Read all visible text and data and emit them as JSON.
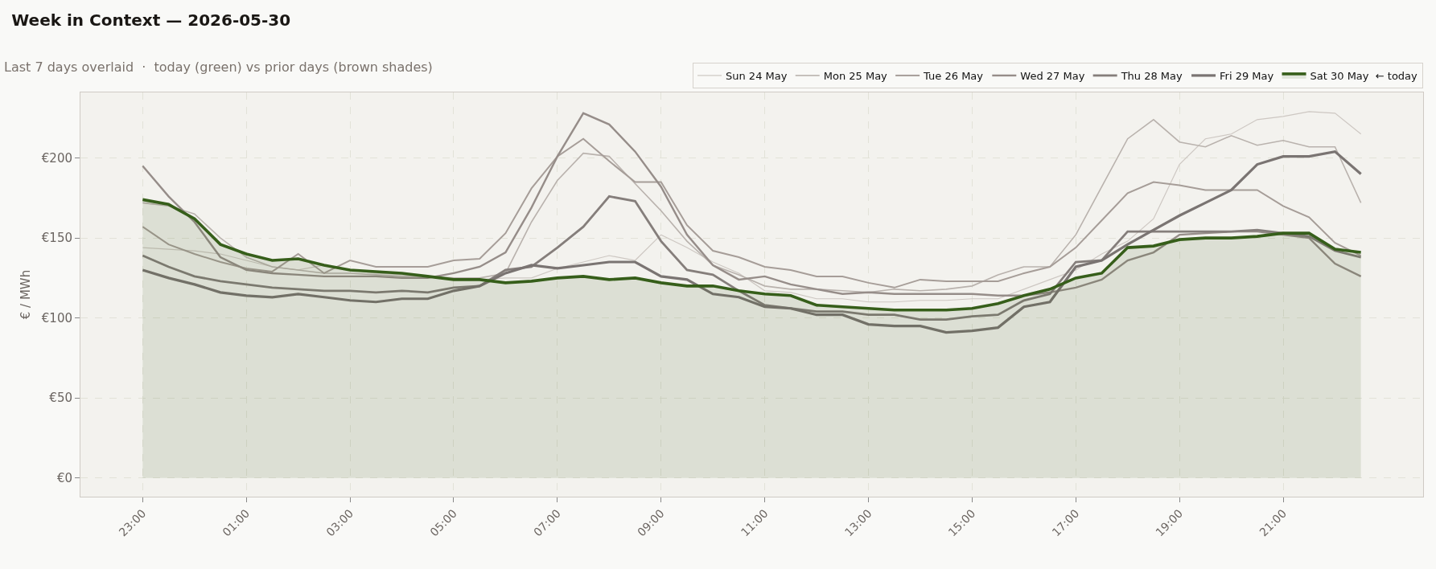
{
  "chart_data": {
    "type": "line",
    "title": "Week in Context — 2026-05-30",
    "subtitle": "Last 7 days overlaid  ·  today (green) vs prior days (brown shades)",
    "ylabel": "€ / MWh",
    "x": [
      "2026-05-29T23:00",
      "2026-05-29T23:30",
      "2026-05-30T00:00",
      "2026-05-30T00:30",
      "2026-05-30T01:00",
      "2026-05-30T01:30",
      "2026-05-30T02:00",
      "2026-05-30T02:30",
      "2026-05-30T03:00",
      "2026-05-30T03:30",
      "2026-05-30T04:00",
      "2026-05-30T04:30",
      "2026-05-30T05:00",
      "2026-05-30T05:30",
      "2026-05-30T06:00",
      "2026-05-30T06:30",
      "2026-05-30T07:00",
      "2026-05-30T07:30",
      "2026-05-30T08:00",
      "2026-05-30T08:30",
      "2026-05-30T09:00",
      "2026-05-30T09:30",
      "2026-05-30T10:00",
      "2026-05-30T10:30",
      "2026-05-30T11:00",
      "2026-05-30T11:30",
      "2026-05-30T12:00",
      "2026-05-30T12:30",
      "2026-05-30T13:00",
      "2026-05-30T13:30",
      "2026-05-30T14:00",
      "2026-05-30T14:30",
      "2026-05-30T15:00",
      "2026-05-30T15:30",
      "2026-05-30T16:00",
      "2026-05-30T16:30",
      "2026-05-30T17:00",
      "2026-05-30T17:30",
      "2026-05-30T18:00",
      "2026-05-30T18:30",
      "2026-05-30T19:00",
      "2026-05-30T19:30",
      "2026-05-30T20:00",
      "2026-05-30T20:30",
      "2026-05-30T21:00",
      "2026-05-30T21:30",
      "2026-05-30T22:00",
      "2026-05-30T22:30"
    ],
    "series": [
      {
        "name": "Sun 24 May",
        "color": "#cdc7c2",
        "values": [
          144,
          143,
          142,
          140,
          136,
          132,
          130,
          133,
          130,
          128,
          127,
          126,
          125,
          124,
          125,
          125,
          131,
          135,
          139,
          136,
          152,
          144,
          135,
          128,
          117,
          116,
          112,
          112,
          110,
          110,
          111,
          111,
          112,
          112,
          118,
          124,
          130,
          140,
          148,
          162,
          196,
          212,
          215,
          224,
          226,
          229,
          228,
          215
        ]
      },
      {
        "name": "Mon 25 May",
        "color": "#b9b2ad",
        "values": [
          172,
          170,
          165,
          150,
          138,
          132,
          130,
          128,
          128,
          127,
          126,
          126,
          125,
          125,
          128,
          160,
          186,
          203,
          201,
          184,
          167,
          148,
          133,
          127,
          120,
          118,
          118,
          117,
          116,
          118,
          117,
          118,
          120,
          127,
          132,
          132,
          152,
          182,
          212,
          224,
          210,
          207,
          214,
          208,
          211,
          207,
          207,
          172
        ]
      },
      {
        "name": "Tue 26 May",
        "color": "#a69d98",
        "values": [
          157,
          146,
          140,
          135,
          131,
          129,
          140,
          128,
          136,
          132,
          132,
          132,
          136,
          137,
          153,
          181,
          201,
          212,
          198,
          185,
          185,
          158,
          142,
          138,
          132,
          130,
          126,
          126,
          122,
          119,
          124,
          123,
          123,
          123,
          128,
          132,
          144,
          161,
          178,
          185,
          183,
          180,
          180,
          180,
          170,
          163,
          147,
          139
        ]
      },
      {
        "name": "Wed 27 May",
        "color": "#968d89",
        "values": [
          195,
          176,
          160,
          138,
          130,
          128,
          127,
          126,
          126,
          126,
          125,
          125,
          128,
          132,
          141,
          169,
          201,
          228,
          221,
          204,
          182,
          152,
          133,
          124,
          126,
          121,
          118,
          115,
          116,
          115,
          115,
          115,
          115,
          114,
          114,
          116,
          119,
          124,
          136,
          141,
          152,
          153,
          154,
          154,
          152,
          150,
          134,
          126
        ]
      },
      {
        "name": "Thu 28 May",
        "color": "#857e7b",
        "values": [
          139,
          132,
          126,
          123,
          121,
          119,
          118,
          117,
          117,
          116,
          117,
          116,
          119,
          120,
          130,
          132,
          144,
          157,
          176,
          173,
          148,
          130,
          127,
          117,
          108,
          106,
          104,
          104,
          102,
          102,
          99,
          99,
          101,
          102,
          111,
          115,
          135,
          136,
          154,
          154,
          154,
          154,
          154,
          155,
          153,
          151,
          142,
          138
        ]
      },
      {
        "name": "Fri 29 May",
        "color": "#7a7472",
        "values": [
          130,
          125,
          121,
          116,
          114,
          113,
          115,
          113,
          111,
          110,
          112,
          112,
          117,
          120,
          128,
          133,
          131,
          133,
          135,
          135,
          126,
          124,
          115,
          113,
          107,
          106,
          102,
          102,
          96,
          95,
          95,
          91,
          92,
          94,
          107,
          110,
          132,
          136,
          146,
          155,
          164,
          172,
          180,
          196,
          201,
          201,
          204,
          190
        ]
      },
      {
        "name": "Sat 30 May  ← today",
        "color": "#365e1a",
        "type": "area",
        "values": [
          174,
          171,
          162,
          146,
          140,
          136,
          137,
          133,
          130,
          129,
          128,
          126,
          124,
          124,
          122,
          123,
          125,
          126,
          124,
          125,
          122,
          120,
          120,
          117,
          115,
          114,
          108,
          107,
          106,
          105,
          105,
          105,
          106,
          109,
          114,
          118,
          125,
          128,
          144,
          145,
          149,
          150,
          150,
          151,
          153,
          153,
          143,
          141
        ]
      }
    ],
    "xlim": [
      "2026-05-29T21:48",
      "2026-05-30T23:42"
    ],
    "xticks": [
      {
        "value": "2026-05-29T23:00",
        "label": "23:00"
      },
      {
        "value": "2026-05-30T01:00",
        "label": "01:00"
      },
      {
        "value": "2026-05-30T03:00",
        "label": "03:00"
      },
      {
        "value": "2026-05-30T05:00",
        "label": "05:00"
      },
      {
        "value": "2026-05-30T07:00",
        "label": "07:00"
      },
      {
        "value": "2026-05-30T09:00",
        "label": "09:00"
      },
      {
        "value": "2026-05-30T11:00",
        "label": "11:00"
      },
      {
        "value": "2026-05-30T13:00",
        "label": "13:00"
      },
      {
        "value": "2026-05-30T15:00",
        "label": "15:00"
      },
      {
        "value": "2026-05-30T17:00",
        "label": "17:00"
      },
      {
        "value": "2026-05-30T19:00",
        "label": "19:00"
      },
      {
        "value": "2026-05-30T21:00",
        "label": "21:00"
      }
    ],
    "ylim": [
      -11.7,
      241
    ],
    "yticks": [
      {
        "value": 0,
        "label": "€0"
      },
      {
        "value": 50,
        "label": "€50"
      },
      {
        "value": 100,
        "label": "€100"
      },
      {
        "value": 150,
        "label": "€150"
      },
      {
        "value": 200,
        "label": "€200"
      }
    ],
    "grid": true,
    "legend": "top",
    "line_style": "solid"
  }
}
